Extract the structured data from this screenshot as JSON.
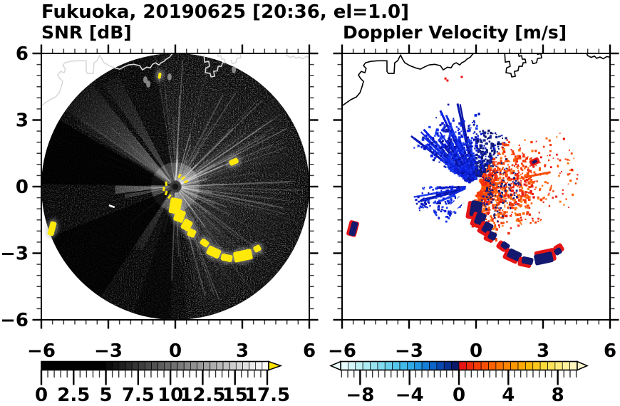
{
  "title": "Fukuoka, 20190625 [20:36, el=1.0]",
  "panels": {
    "snr": {
      "title": "SNR [dB]"
    },
    "vel": {
      "title": "Doppler Velocity [m/s]"
    }
  },
  "axes": {
    "range": [
      -6,
      6
    ],
    "minor_step": 0.5,
    "x_tick_values": [
      -6,
      -3,
      0,
      3,
      6
    ],
    "x_tick_labels": [
      "−6",
      "−3",
      "0",
      "3",
      "6"
    ],
    "y_tick_values": [
      6,
      3,
      0,
      -3,
      -6
    ],
    "y_tick_labels": [
      "6",
      "3",
      "0",
      "−3",
      "−6"
    ]
  },
  "colorbars": {
    "snr": {
      "tick_values": [
        0,
        2.5,
        5,
        7.5,
        10,
        12.5,
        15,
        17.5
      ],
      "tick_labels": [
        "0",
        "2.5",
        "5",
        "7.5",
        "10",
        "12.5",
        "15",
        "17.5"
      ],
      "black_until": 5,
      "max": 17.5,
      "cells": 25,
      "gray_start": 12,
      "gray_end": 255,
      "overflow_arrow_color": "#ffe400"
    },
    "vel": {
      "tick_values": [
        -8,
        -4,
        0,
        4,
        8
      ],
      "tick_labels": [
        "−8",
        "−4",
        "0",
        "4",
        "8"
      ],
      "range": [
        -9.6,
        9.6
      ],
      "cell_colors": [
        "#e6fbfb",
        "#d3f6f8",
        "#bff1f4",
        "#abebf1",
        "#96e3ef",
        "#81daed",
        "#6bd1ec",
        "#55c7ec",
        "#42baea",
        "#30a9e7",
        "#2296e2",
        "#167fd8",
        "#0d64c8",
        "#0848b0",
        "#063092",
        "#0a1a6a",
        "#e71414",
        "#ee2a0c",
        "#f43d06",
        "#f94f02",
        "#fc6100",
        "#fe7300",
        "#fe8500",
        "#fe9700",
        "#fea800",
        "#feb806",
        "#fec81e",
        "#fed93a",
        "#fee25a",
        "#feeb7c",
        "#fef29e",
        "#fdf6be"
      ],
      "left_arrow_color": "#eafcfc",
      "right_arrow_color": "#fdf8cd"
    }
  },
  "chart_data": [
    {
      "type": "heatmap",
      "panel": "left",
      "title": "SNR [dB]",
      "x_range": [
        -6,
        6
      ],
      "y_range": [
        -6,
        6
      ],
      "colorbar_ticks": [
        0,
        2.5,
        5,
        7.5,
        10,
        12.5,
        15,
        17.5
      ],
      "colorbar_scale": "black below 5 dB, gray steps to white at 17.5 dB, yellow overflow arrow",
      "content": "PPI radar disk of radius 6 centered on (0,0); mostly near-zero SNR (black) with faint gray radial spokes strongest toward the east; bright beams toward WNW (az 137) and W (az 183); yellow high-SNR ground-clutter chain running SE from the radar to about (3.7,-2.8); isolated yellow patches at (2.6,1.1) and the west edge (-5.5,-1.9); light coastline and harbor piers overlaid along the top of the disk"
    },
    {
      "type": "heatmap",
      "panel": "right",
      "title": "Doppler Velocity [m/s]",
      "x_range": [
        -6,
        6
      ],
      "y_range": [
        -6,
        6
      ],
      "colorbar_ticks": [
        -8,
        -4,
        0,
        4,
        8
      ],
      "colorbar_range": [
        -9.6,
        9.6
      ],
      "colorbar_scale": "pale cyan through blue to dark navy for negative, red through orange to cream for positive",
      "content": "negative (blue) velocities fan NW-N of the radar out to ~3.5; positive (red-orange) velocities spread E-SE out to ~4.5; white data gap at the radar site with a clear-air slash toward SW; navy/red aliased clutter chain SE matching the SNR clutter; black coastline and piers along the top; small red echoes near the coast"
    }
  ],
  "features": {
    "coastline": [
      [
        -6.0,
        3.64
      ],
      [
        -5.62,
        3.91
      ],
      [
        -5.36,
        4.04
      ],
      [
        -5.2,
        4.23
      ],
      [
        -5.11,
        4.49
      ],
      [
        -5.04,
        4.74
      ],
      [
        -5.17,
        4.87
      ],
      [
        -5.27,
        5.03
      ],
      [
        -5.14,
        5.19
      ],
      [
        -4.98,
        5.13
      ],
      [
        -4.92,
        5.32
      ],
      [
        -5.04,
        5.45
      ],
      [
        -4.95,
        5.58
      ],
      [
        -4.72,
        5.64
      ],
      [
        -4.4,
        5.67
      ],
      [
        -3.99,
        5.67
      ],
      [
        -3.99,
        5.19
      ],
      [
        -3.93,
        5.1
      ],
      [
        -3.67,
        5.1
      ],
      [
        -3.64,
        5.58
      ],
      [
        -3.51,
        5.67
      ],
      [
        -3.38,
        5.93
      ],
      [
        -3.29,
        5.74
      ],
      [
        -3.19,
        5.58
      ],
      [
        -2.97,
        5.45
      ],
      [
        -2.71,
        5.35
      ],
      [
        -2.49,
        5.29
      ],
      [
        -2.33,
        5.38
      ],
      [
        -2.11,
        5.48
      ],
      [
        -1.85,
        5.51
      ],
      [
        -1.6,
        5.45
      ],
      [
        -1.47,
        5.26
      ],
      [
        -1.37,
        5.32
      ],
      [
        -1.28,
        5.38
      ],
      [
        -1.12,
        5.35
      ],
      [
        -1.02,
        5.51
      ],
      [
        -0.89,
        5.58
      ],
      [
        -0.73,
        5.48
      ],
      [
        -0.64,
        5.58
      ],
      [
        -0.51,
        5.64
      ],
      [
        -0.41,
        5.74
      ],
      [
        -0.26,
        5.83
      ],
      [
        -0.16,
        5.96
      ],
      [
        0.0,
        6.08
      ]
    ],
    "piers": [
      [
        [
          1.28,
          6.1
        ],
        [
          1.31,
          5.61
        ],
        [
          1.5,
          5.64
        ],
        [
          1.53,
          5.42
        ],
        [
          1.37,
          5.35
        ],
        [
          1.34,
          5.13
        ],
        [
          1.56,
          5.1
        ],
        [
          1.6,
          4.94
        ],
        [
          1.76,
          4.97
        ],
        [
          1.72,
          5.19
        ],
        [
          1.88,
          5.22
        ],
        [
          1.92,
          5.42
        ],
        [
          2.07,
          5.42
        ],
        [
          2.11,
          5.58
        ],
        [
          2.23,
          5.58
        ],
        [
          2.2,
          5.74
        ],
        [
          2.07,
          5.74
        ],
        [
          2.04,
          5.9
        ],
        [
          1.92,
          5.87
        ],
        [
          1.88,
          6.1
        ]
      ],
      [
        [
          2.49,
          5.71
        ],
        [
          2.55,
          5.54
        ],
        [
          2.71,
          5.58
        ],
        [
          2.75,
          5.77
        ],
        [
          2.94,
          5.8
        ],
        [
          2.9,
          5.99
        ],
        [
          2.75,
          5.96
        ],
        [
          2.71,
          6.1
        ]
      ]
    ],
    "coast_fragment": [
      [
        4.9,
        6.1
      ],
      [
        5.0,
        5.9
      ],
      [
        5.15,
        5.82
      ],
      [
        5.3,
        5.88
      ],
      [
        5.4,
        5.78
      ],
      [
        5.55,
        5.84
      ],
      [
        5.7,
        5.76
      ],
      [
        5.85,
        5.86
      ],
      [
        6.0,
        5.83
      ]
    ],
    "chain_echoes": [
      [
        0.0,
        -0.87,
        16,
        22,
        10
      ],
      [
        0.19,
        -1.32,
        14,
        17,
        20
      ],
      [
        0.51,
        -1.73,
        13,
        15,
        30
      ],
      [
        0.73,
        -2.09,
        11,
        11,
        25
      ],
      [
        1.31,
        -2.53,
        12,
        9,
        35
      ],
      [
        1.72,
        -2.95,
        19,
        13,
        25
      ],
      [
        2.3,
        -3.21,
        16,
        10,
        12
      ],
      [
        3.03,
        -3.11,
        26,
        15,
        -12
      ],
      [
        3.67,
        -2.79,
        10,
        9,
        -30
      ]
    ],
    "snr": {
      "beams": [
        [
          137,
          8,
          6.0,
          0.45
        ],
        [
          121,
          4,
          5.6,
          0.3
        ],
        [
          146,
          2.5,
          5.2,
          0.22
        ],
        [
          183,
          4,
          2.7,
          0.5
        ],
        [
          191,
          2.5,
          2.3,
          0.28
        ],
        [
          239,
          4,
          3.2,
          0.16
        ],
        [
          310,
          7,
          4.0,
          0.1
        ],
        [
          28,
          14,
          5.9,
          0.1
        ]
      ],
      "dark_sectors": [
        [
          150,
          179,
          0.8
        ],
        [
          202,
          236,
          0.72
        ],
        [
          252,
          268,
          0.45
        ]
      ],
      "extra_yellow": [
        [
          2.62,
          1.12,
          13,
          8,
          -25
        ],
        [
          -5.52,
          -1.89,
          9,
          20,
          15
        ],
        [
          -0.7,
          5.0,
          4,
          9,
          10
        ]
      ],
      "center_dashes": [
        [
          0.19,
          0.48,
          -60
        ],
        [
          0.35,
          0.38,
          -40
        ],
        [
          0.48,
          0.22,
          -20
        ],
        [
          -0.41,
          0.13,
          80
        ],
        [
          -0.51,
          -0.1,
          95
        ],
        [
          -0.41,
          -0.29,
          110
        ],
        [
          -0.26,
          -0.45,
          125
        ]
      ],
      "gray_smudges": [
        [
          -1.34,
          4.81
        ],
        [
          -0.26,
          4.94
        ],
        [
          2.62,
          5.26
        ],
        [
          -1.21,
          4.62
        ]
      ],
      "white_dash": [
        [
          -2.97,
          -0.84
        ],
        [
          -2.72,
          -0.93
        ]
      ],
      "yellow": "#ffe90a"
    },
    "vel": {
      "blue_colors": [
        "#0a1cd8",
        "#0c22e2",
        "#0817b4",
        "#1130ea",
        "#0a12a0",
        "#1c3cee"
      ],
      "navy_colors": [
        "#101c85",
        "#0c1670",
        "#1a2490"
      ],
      "red_colors": [
        "#fb4a0a",
        "#f63a04",
        "#ff5f00",
        "#f02c0c",
        "#e81a12",
        "#ff7a1a"
      ],
      "chain_navy": "#13196e",
      "chain_red": "#e51515",
      "coast_dots": [
        [
          -1.37,
          4.87
        ],
        [
          -1.28,
          4.78
        ],
        [
          -0.64,
          4.94
        ]
      ],
      "extra": {
        "ne_blob": [
          2.62,
          1.12,
          14,
          9,
          -25
        ],
        "w_blob": [
          -5.52,
          -1.89,
          9,
          20,
          15
        ]
      }
    }
  }
}
